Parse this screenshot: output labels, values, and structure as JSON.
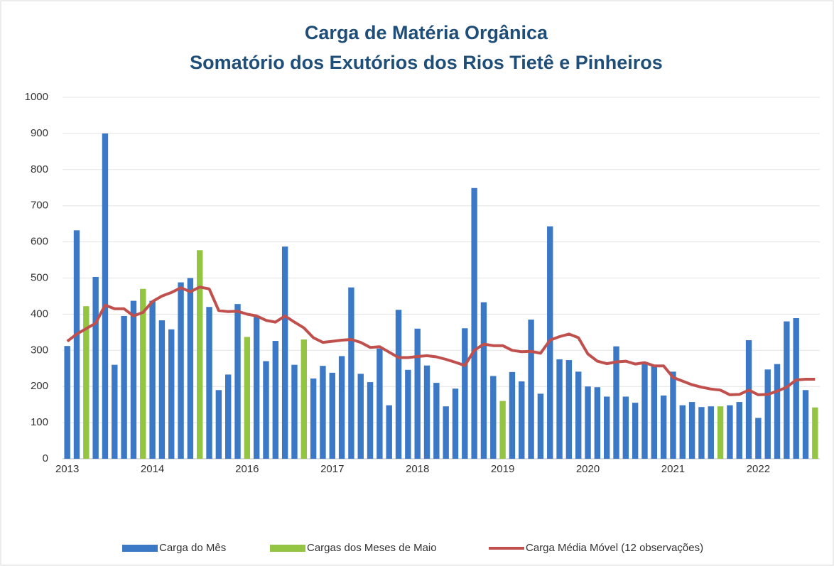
{
  "chart_data": {
    "type": "bar_line",
    "title": "Carga de Matéria Orgânica",
    "subtitle": "Somatório dos Exutórios dos Rios Tietê e Pinheiros",
    "categories": [
      "2013",
      null,
      null,
      null,
      null,
      null,
      null,
      null,
      null,
      "2014",
      null,
      null,
      null,
      null,
      null,
      null,
      null,
      null,
      null,
      "2016",
      null,
      null,
      null,
      null,
      null,
      null,
      null,
      null,
      "2017",
      null,
      null,
      null,
      null,
      null,
      null,
      null,
      null,
      "2018",
      null,
      null,
      null,
      null,
      null,
      null,
      null,
      null,
      "2019",
      null,
      null,
      null,
      null,
      null,
      null,
      null,
      null,
      "2020",
      null,
      null,
      null,
      null,
      null,
      null,
      null,
      null,
      "2021",
      null,
      null,
      null,
      null,
      null,
      null,
      null,
      null,
      "2022",
      null,
      null,
      null,
      null,
      null,
      null
    ],
    "series": [
      {
        "name": "Carga do Mês",
        "kind": "bar",
        "color": "#3b78c6",
        "values": [
          312,
          632,
          null,
          503,
          900,
          260,
          395,
          437,
          null,
          437,
          383,
          358,
          488,
          500,
          null,
          420,
          190,
          233,
          428,
          null,
          392,
          270,
          326,
          587,
          260,
          null,
          222,
          257,
          238,
          284,
          474,
          235,
          212,
          305,
          148,
          412,
          246,
          360,
          258,
          210,
          145,
          194,
          361,
          749,
          433,
          229,
          null,
          240,
          214,
          385,
          180,
          643,
          275,
          273,
          241,
          200,
          198,
          172,
          311,
          172,
          155,
          265,
          258,
          175,
          241,
          148,
          157,
          143,
          145,
          null,
          148,
          157,
          328,
          113,
          247,
          262,
          380,
          389,
          190,
          null
        ]
      },
      {
        "name": "Cargas dos Meses de Maio",
        "kind": "bar",
        "color": "#93c442",
        "values": [
          null,
          null,
          422,
          null,
          null,
          null,
          null,
          null,
          470,
          null,
          null,
          null,
          null,
          null,
          577,
          null,
          null,
          null,
          null,
          337,
          null,
          null,
          null,
          null,
          null,
          330,
          null,
          null,
          null,
          null,
          null,
          null,
          null,
          null,
          null,
          null,
          null,
          null,
          null,
          null,
          null,
          null,
          null,
          null,
          null,
          null,
          160,
          null,
          null,
          null,
          null,
          null,
          null,
          null,
          null,
          null,
          null,
          null,
          null,
          null,
          null,
          null,
          null,
          null,
          null,
          null,
          null,
          null,
          null,
          145,
          null,
          null,
          null,
          null,
          null,
          null,
          null,
          null,
          null,
          142
        ]
      },
      {
        "name": "Carga Média Móvel (12 observações)",
        "kind": "line",
        "color": "#c0504d",
        "values": [
          325,
          345,
          360,
          375,
          425,
          415,
          415,
          395,
          405,
          435,
          450,
          460,
          473,
          462,
          475,
          470,
          410,
          407,
          408,
          400,
          395,
          383,
          378,
          395,
          378,
          362,
          335,
          322,
          325,
          328,
          330,
          322,
          308,
          310,
          295,
          280,
          280,
          283,
          285,
          282,
          275,
          267,
          258,
          300,
          317,
          313,
          313,
          300,
          296,
          297,
          292,
          328,
          338,
          345,
          335,
          290,
          270,
          263,
          268,
          270,
          262,
          266,
          257,
          257,
          225,
          215,
          205,
          198,
          193,
          190,
          177,
          178,
          190,
          177,
          178,
          187,
          198,
          218,
          220,
          220
        ]
      }
    ],
    "ylim": [
      0,
      1000
    ],
    "yticks": [
      0,
      100,
      200,
      300,
      400,
      500,
      600,
      700,
      800,
      900,
      1000
    ],
    "grid": true
  }
}
